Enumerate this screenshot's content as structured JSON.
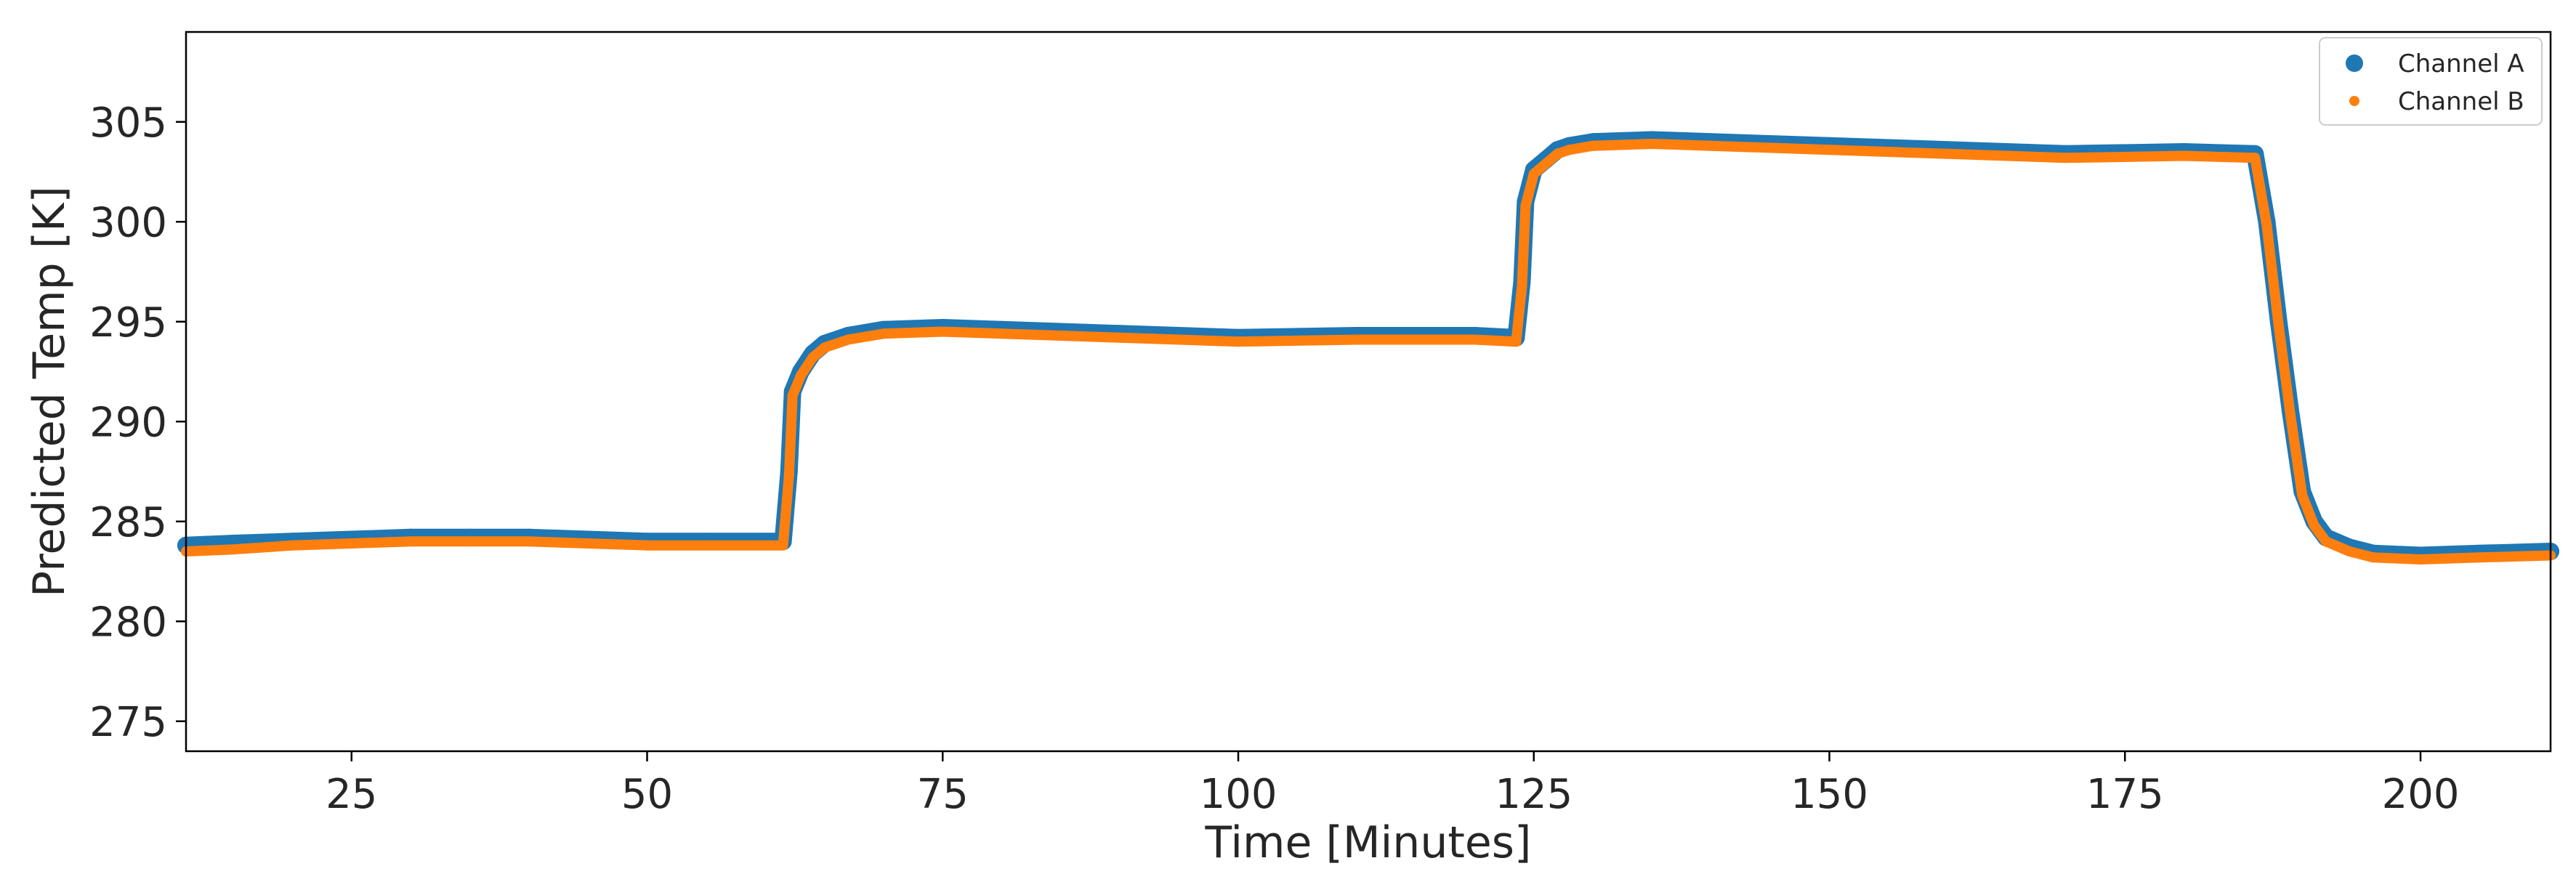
{
  "chart_data": {
    "type": "scatter",
    "title": "",
    "xlabel": "Time [Minutes]",
    "ylabel": "Predicted Temp [K]",
    "xlim": [
      11,
      211
    ],
    "ylim": [
      273.5,
      309.5
    ],
    "xticks": [
      25,
      50,
      75,
      100,
      125,
      150,
      175,
      200
    ],
    "yticks": [
      275,
      280,
      285,
      290,
      295,
      300,
      305
    ],
    "grid": false,
    "legend_position": "top-right",
    "series": [
      {
        "name": "Channel A",
        "color": "#1f77b4",
        "x": [
          11,
          15,
          20,
          25,
          30,
          35,
          40,
          45,
          50,
          55,
          60,
          61.5,
          62,
          62.3,
          63,
          64,
          65,
          67,
          70,
          75,
          80,
          90,
          100,
          110,
          120,
          123.5,
          124,
          124.3,
          125,
          126,
          127,
          128,
          130,
          135,
          140,
          150,
          160,
          170,
          180,
          186,
          187,
          188,
          189,
          190,
          191,
          192,
          194,
          196,
          200,
          205,
          211
        ],
        "y": [
          283.8,
          283.9,
          284.0,
          284.1,
          284.2,
          284.2,
          284.2,
          284.1,
          284.0,
          284.0,
          284.0,
          284.0,
          287.5,
          291.5,
          292.5,
          293.4,
          293.9,
          294.3,
          294.6,
          294.7,
          294.6,
          294.4,
          294.2,
          294.3,
          294.3,
          294.2,
          297.0,
          301.0,
          302.6,
          303.1,
          303.6,
          303.8,
          304.0,
          304.1,
          304.0,
          303.8,
          303.6,
          303.4,
          303.5,
          303.4,
          300.0,
          295.0,
          290.5,
          286.5,
          285.0,
          284.2,
          283.7,
          283.4,
          283.3,
          283.4,
          283.5
        ]
      },
      {
        "name": "Channel B",
        "color": "#ff7f0e",
        "x": [
          11,
          15,
          20,
          25,
          30,
          35,
          40,
          45,
          50,
          55,
          60,
          61.5,
          62,
          62.3,
          63,
          64,
          65,
          67,
          70,
          75,
          80,
          90,
          100,
          110,
          120,
          123.5,
          124,
          124.3,
          125,
          126,
          127,
          128,
          130,
          135,
          140,
          150,
          160,
          170,
          180,
          186,
          187,
          188,
          189,
          190,
          191,
          192,
          194,
          196,
          200,
          205,
          211
        ],
        "y": [
          283.5,
          283.6,
          283.8,
          283.9,
          284.0,
          284.0,
          284.0,
          283.9,
          283.8,
          283.8,
          283.8,
          283.8,
          287.3,
          291.3,
          292.3,
          293.2,
          293.7,
          294.1,
          294.4,
          294.5,
          294.4,
          294.2,
          294.0,
          294.1,
          294.1,
          294.0,
          296.8,
          300.8,
          302.4,
          302.9,
          303.4,
          303.6,
          303.8,
          303.9,
          303.8,
          303.6,
          303.4,
          303.2,
          303.3,
          303.2,
          299.8,
          294.8,
          290.3,
          286.3,
          284.8,
          284.0,
          283.5,
          283.2,
          283.1,
          283.2,
          283.3
        ]
      }
    ]
  }
}
